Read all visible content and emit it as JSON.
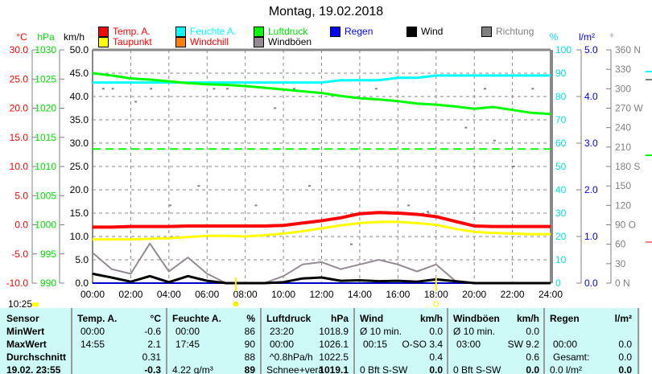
{
  "title": "Montag, 19.02.2018",
  "legend": [
    {
      "label": "Temp. A.",
      "color": "#ff0000",
      "text_color": "#ff0000"
    },
    {
      "label": "Taupunkt",
      "color": "#ffff00",
      "text_color": "#ff0000"
    },
    {
      "label": "Feuchte A.",
      "color": "#00ffff",
      "text_color": "#00ffff"
    },
    {
      "label": "Windchill",
      "color": "#ff8000",
      "text_color": "#ff0000"
    },
    {
      "label": "Luftdruck",
      "color": "#00ff00",
      "text_color": "#00dd00"
    },
    {
      "label": "Windböen",
      "color": "#948a94",
      "text_color": "#000000"
    },
    {
      "label": "Regen",
      "color": "#0000ff",
      "text_color": "#0000ff"
    },
    {
      "label": "Wind",
      "color": "#000000",
      "text_color": "#000000"
    },
    {
      "label": "Richtung",
      "color": "#808080",
      "text_color": "#808080"
    }
  ],
  "current_time": "10:25",
  "chart_data": {
    "type": "line",
    "title": "Montag, 19.02.2018",
    "x_ticks": [
      "00:00",
      "02:00",
      "04:00",
      "06:00",
      "08:00",
      "10:00",
      "12:00",
      "14:00",
      "16:00",
      "18:00",
      "20:00",
      "22:00",
      "24:00"
    ],
    "axes": {
      "temp": {
        "unit": "°C",
        "range": [
          -10,
          30
        ],
        "ticks": [
          "30.0",
          "25.0",
          "20.0",
          "15.0",
          "10.0",
          "5.0",
          "0.0",
          "-5.0",
          "-10.0"
        ]
      },
      "pressure": {
        "unit": "hPa",
        "range": [
          990,
          1030
        ],
        "ticks": [
          "1030",
          "1025",
          "1020",
          "1015",
          "1010",
          "1005",
          "1000",
          "995",
          "990"
        ]
      },
      "wind": {
        "unit": "km/h",
        "range": [
          0,
          50
        ],
        "ticks": [
          "50.0",
          "45.0",
          "40.0",
          "35.0",
          "30.0",
          "25.0",
          "20.0",
          "15.0",
          "10.0",
          "5.0",
          "0.0"
        ]
      },
      "humidity": {
        "unit": "%",
        "range": [
          0,
          100
        ],
        "ticks": [
          "100",
          "90",
          "80",
          "70",
          "60",
          "50",
          "40",
          "30",
          "20",
          "10",
          "0"
        ]
      },
      "rain": {
        "unit": "l/m²",
        "range": [
          0,
          5
        ],
        "ticks": [
          "5.0",
          "4.0",
          "3.0",
          "2.0",
          "1.0",
          "0.0"
        ]
      },
      "direction": {
        "unit": "°",
        "range": [
          0,
          360
        ],
        "ticks": [
          "360 N",
          "330",
          "300",
          "270 W",
          "240",
          "210",
          "180 S",
          "150",
          "120",
          "90  O",
          "60",
          "30",
          "0   N"
        ]
      }
    },
    "hours": [
      0,
      1,
      2,
      3,
      4,
      5,
      6,
      7,
      8,
      9,
      10,
      11,
      12,
      13,
      14,
      15,
      16,
      17,
      18,
      19,
      20,
      21,
      22,
      23,
      24
    ],
    "series": [
      {
        "name": "Temp. A.",
        "axis": "temp",
        "values": [
          -0.4,
          -0.4,
          -0.3,
          -0.3,
          -0.3,
          -0.2,
          -0.2,
          -0.2,
          -0.2,
          -0.2,
          -0.1,
          0.3,
          0.7,
          1.2,
          1.9,
          2.1,
          2.0,
          1.8,
          1.4,
          0.6,
          -0.2,
          -0.3,
          -0.3,
          -0.3,
          -0.3
        ]
      },
      {
        "name": "Taupunkt",
        "axis": "temp",
        "values": [
          -2.5,
          -2.5,
          -2.5,
          -2.4,
          -2.3,
          -2.1,
          -1.9,
          -1.9,
          -2.0,
          -1.8,
          -1.5,
          -1.1,
          -0.6,
          -0.1,
          0.3,
          0.5,
          0.5,
          0.3,
          0.0,
          -0.7,
          -1.2,
          -1.4,
          -1.5,
          -1.6,
          -1.6
        ]
      },
      {
        "name": "Luftdruck",
        "axis": "pressure",
        "values": [
          1026.0,
          1025.6,
          1025.1,
          1024.9,
          1024.6,
          1024.3,
          1024.1,
          1024.0,
          1023.8,
          1023.5,
          1023.2,
          1022.9,
          1022.6,
          1022.1,
          1021.7,
          1021.5,
          1021.2,
          1020.8,
          1020.6,
          1020.3,
          1019.9,
          1020.2,
          1019.7,
          1019.2,
          1019.0
        ]
      },
      {
        "name": "Feuchte A.",
        "axis": "humidity",
        "values": [
          86,
          86,
          86,
          86,
          86,
          86,
          86,
          86,
          86,
          86,
          86,
          86,
          86,
          87,
          87,
          87,
          88,
          88,
          89,
          89,
          89,
          89,
          89,
          89,
          89
        ]
      },
      {
        "name": "Wind",
        "axis": "wind",
        "values": [
          2.0,
          1.2,
          0.3,
          1.5,
          0.2,
          1.5,
          0.5,
          0,
          0,
          0,
          0.2,
          1.0,
          1.2,
          0.5,
          0.6,
          0.4,
          0.5,
          0.3,
          0.8,
          0.4,
          0,
          0,
          0,
          0,
          0
        ]
      },
      {
        "name": "Windböen",
        "axis": "wind",
        "values": [
          6.5,
          3.0,
          2.0,
          8.5,
          2.5,
          5.5,
          2.0,
          0,
          0,
          0,
          1.5,
          4.0,
          4.5,
          3.0,
          4.0,
          5.0,
          4.0,
          2.5,
          4.0,
          0.5,
          0,
          0,
          0,
          0,
          0
        ]
      },
      {
        "name": "Regen",
        "axis": "rain",
        "values": [
          0,
          0,
          0,
          0,
          0,
          0,
          0,
          0,
          0,
          0,
          0,
          0,
          0,
          0,
          0,
          0,
          0,
          0,
          0,
          0,
          0,
          0,
          0,
          0,
          0
        ]
      }
    ],
    "reference_line": {
      "axis": "pressure",
      "value": 1013
    },
    "sunrise": "07:30",
    "sunset": "18:00",
    "direction_points": [
      [
        0.5,
        300
      ],
      [
        1.0,
        300
      ],
      [
        2.2,
        280
      ],
      [
        3.0,
        300
      ],
      [
        4.0,
        120
      ],
      [
        5.5,
        150
      ],
      [
        6.3,
        300
      ],
      [
        7.0,
        300
      ],
      [
        8.5,
        120
      ],
      [
        9.5,
        270
      ],
      [
        10.5,
        300
      ],
      [
        11.3,
        150
      ],
      [
        12.5,
        100
      ],
      [
        13.5,
        60
      ],
      [
        14.8,
        300
      ],
      [
        16.5,
        120
      ],
      [
        17.5,
        110
      ],
      [
        19.5,
        240
      ],
      [
        20.5,
        300
      ],
      [
        21.0,
        220
      ],
      [
        22.0,
        180
      ],
      [
        23.0,
        300
      ]
    ],
    "grid": true
  },
  "table": {
    "headers": [
      "Sensor",
      "Temp. A.",
      "°C",
      "Feuchte A.",
      "%",
      "Luftdruck",
      "hPa",
      "Wind",
      "km/h",
      "Windböen",
      "km/h",
      "Regen",
      "l/m²"
    ],
    "rows": [
      {
        "label": "MinWert",
        "temp_t": "00:00",
        "temp_v": "-0.6",
        "hum_t": "00:00",
        "hum_v": "86",
        "pres_t": "23:20",
        "pres_v": "1018.9",
        "wind_t": "Ø 10 min.",
        "wind_v": "0.0",
        "gust_t": "Ø 10 min.",
        "gust_v": "0.0",
        "rain_t": "",
        "rain_v": ""
      },
      {
        "label": "MaxWert",
        "temp_t": "14:55",
        "temp_v": "2.1",
        "hum_t": "17:45",
        "hum_v": "90",
        "pres_t": "00:00",
        "pres_v": "1026.1",
        "wind_t": "00:15",
        "wind_v": "O-SO 3.4",
        "gust_t": "03:00",
        "gust_v": "SW 9.2",
        "rain_t": "00:00",
        "rain_v": "0.0"
      },
      {
        "label": "Durchschnitt",
        "temp_t": "",
        "temp_v": "0.31",
        "hum_t": "",
        "hum_v": "88",
        "pres_t": "^0.8hPa/h",
        "pres_v": "1022.5",
        "wind_t": "",
        "wind_v": "0.4",
        "gust_t": "",
        "gust_v": "0.6",
        "rain_t": "Gesamt:",
        "rain_v": "0.0"
      },
      {
        "label": "19.02. 23:55",
        "temp_t": "",
        "temp_v": "-0.3",
        "hum_t": "4.22 g/m³",
        "hum_v": "89",
        "pres_t": "Schnee+verä",
        "pres_v": "1019.1",
        "wind_t": "0 Bft S-SW",
        "wind_v": "0.0",
        "gust_t": "0 Bft S-SW",
        "gust_v": "0.0",
        "rain_t": "0.0 l/m²",
        "rain_v": "0.0"
      }
    ]
  }
}
